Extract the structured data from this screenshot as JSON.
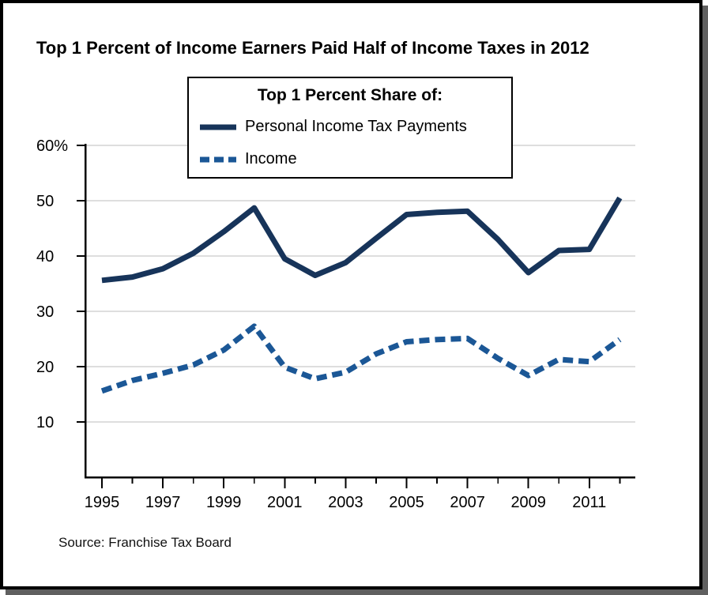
{
  "figure": {
    "title": "Top 1 Percent of Income Earners Paid Half of Income Taxes in 2012",
    "source": "Source: Franchise Tax Board"
  },
  "legend": {
    "title": "Top 1 Percent Share of:",
    "position": "top-center",
    "items": [
      {
        "label": "Personal Income Tax Payments",
        "style": "solid",
        "color": "#17345a"
      },
      {
        "label": "Income",
        "style": "dashed",
        "color": "#1b5796"
      }
    ]
  },
  "chart_data": {
    "type": "line",
    "title": "Top 1 Percent of Income Earners Paid Half of Income Taxes in 2012",
    "source": "Source: Franchise Tax Board",
    "x": [
      1995,
      1996,
      1997,
      1998,
      1999,
      2000,
      2001,
      2002,
      2003,
      2004,
      2005,
      2006,
      2007,
      2008,
      2009,
      2010,
      2011,
      2012
    ],
    "series": [
      {
        "name": "Personal Income Tax Payments",
        "style": "solid",
        "color": "#17345a",
        "values": [
          35.6,
          36.2,
          37.7,
          40.5,
          44.4,
          48.7,
          39.5,
          36.5,
          38.8,
          43.2,
          47.5,
          47.9,
          48.1,
          43.0,
          37.0,
          41.0,
          41.2,
          50.5
        ]
      },
      {
        "name": "Income",
        "style": "dashed",
        "color": "#1b5796",
        "values": [
          15.6,
          17.5,
          18.8,
          20.3,
          23.0,
          27.3,
          19.9,
          17.8,
          19.0,
          22.3,
          24.5,
          24.9,
          25.1,
          21.5,
          18.4,
          21.3,
          20.9,
          24.9
        ]
      }
    ],
    "xlabel": "",
    "ylabel": "",
    "ylim": [
      0,
      60
    ],
    "yticks": [
      60,
      50,
      40,
      30,
      20,
      10
    ],
    "ytick_labels": [
      "60%",
      "50",
      "40",
      "30",
      "20",
      "10"
    ],
    "xticks_major": [
      1995,
      1997,
      1999,
      2001,
      2003,
      2005,
      2007,
      2009,
      2011
    ],
    "xticks_minor": [
      1996,
      1998,
      2000,
      2002,
      2004,
      2006,
      2008,
      2010,
      2012
    ],
    "grid": "horizontal",
    "grid_color": "#dedede",
    "axis_color": "#000000",
    "legend_position": "top-center"
  }
}
